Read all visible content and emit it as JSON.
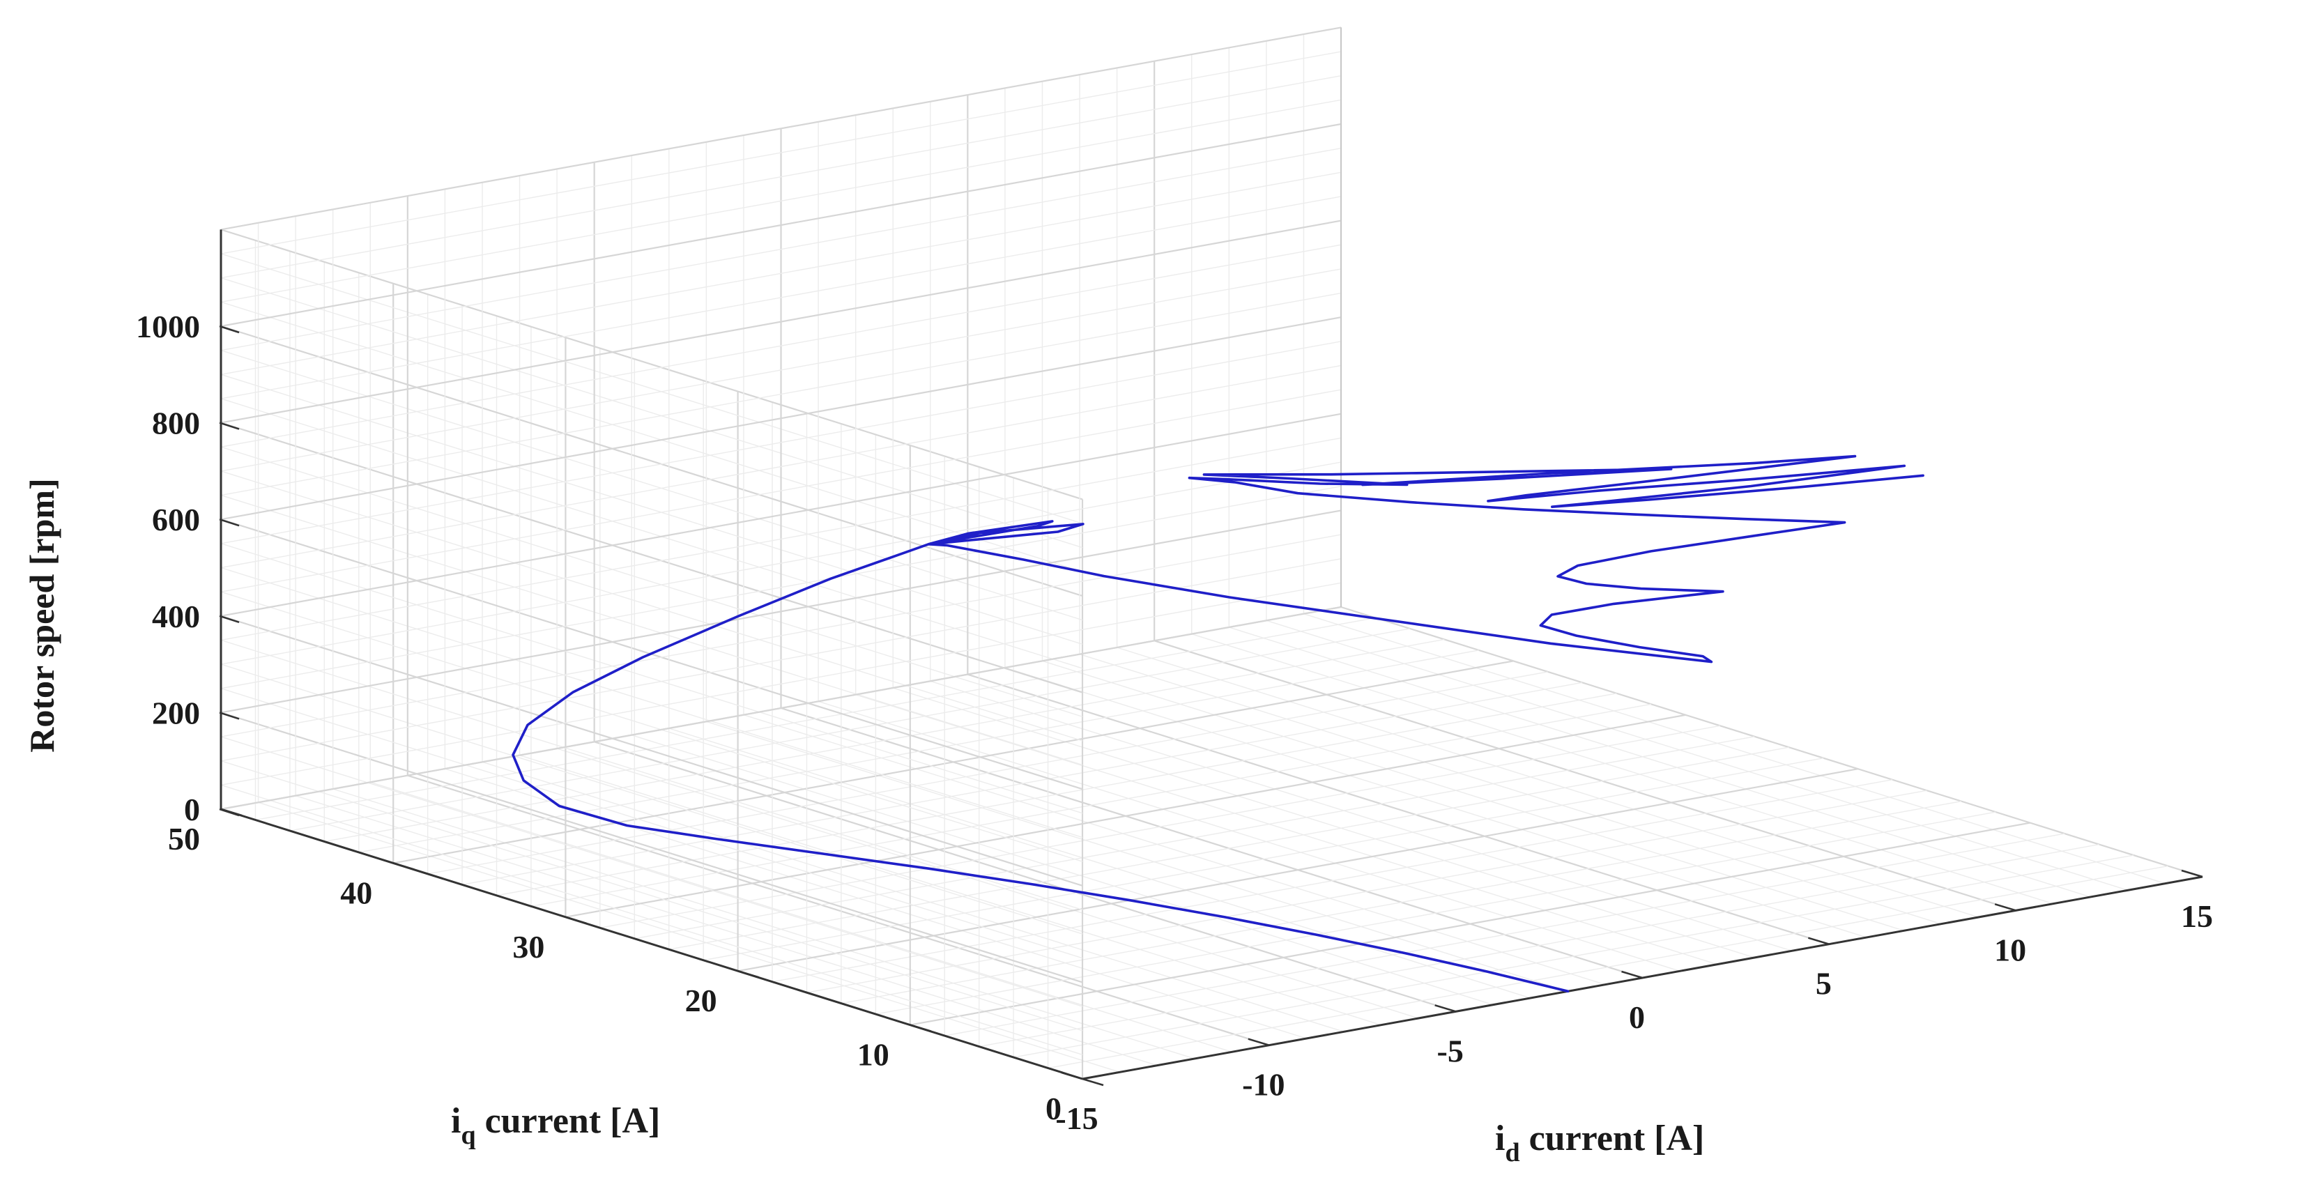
{
  "chart_data": {
    "type": "line3d",
    "title": "",
    "xlabel": {
      "main": "i",
      "sub": "d",
      "rest": " current [A]"
    },
    "ylabel": {
      "main": "i",
      "sub": "q",
      "rest": " current [A]"
    },
    "zlabel": "Rotor speed [rpm]",
    "xlim": [
      -15,
      15
    ],
    "ylim": [
      0,
      50
    ],
    "zlim": [
      0,
      1200
    ],
    "xticks": [
      "-15",
      "-10",
      "-5",
      "0",
      "5",
      "10",
      "15"
    ],
    "yticks": [
      "0",
      "10",
      "20",
      "30",
      "40",
      "50"
    ],
    "zticks": [
      "0",
      "200",
      "400",
      "600",
      "800",
      "1000"
    ],
    "grid": true,
    "series": [
      {
        "color": "#1f1fc8",
        "points": [
          [
            -2,
            0,
            0
          ],
          [
            -2.3,
            4,
            0
          ],
          [
            -2.7,
            8,
            0
          ],
          [
            -3.2,
            12,
            0
          ],
          [
            -3.8,
            16,
            0
          ],
          [
            -4.5,
            20,
            0
          ],
          [
            -5.3,
            24,
            0
          ],
          [
            -6.2,
            28,
            0
          ],
          [
            -7.2,
            32,
            0
          ],
          [
            -8.2,
            36,
            0
          ],
          [
            -9.2,
            39,
            8
          ],
          [
            -10,
            41.2,
            35
          ],
          [
            -10.4,
            42.4,
            80
          ],
          [
            -10.5,
            42.8,
            130
          ],
          [
            -10.2,
            42.6,
            190
          ],
          [
            -9.5,
            41.5,
            260
          ],
          [
            -8.5,
            39.6,
            340
          ],
          [
            -7,
            37.3,
            430
          ],
          [
            -5.5,
            35.2,
            510
          ],
          [
            -4.4,
            33.7,
            560
          ],
          [
            -3.8,
            33.2,
            580
          ],
          [
            -3.0,
            32.6,
            598
          ],
          [
            -1.5,
            31.0,
            620
          ],
          [
            -1.6,
            31.6,
            605
          ],
          [
            -3.8,
            33.2,
            580
          ],
          [
            -2.8,
            32.3,
            600
          ],
          [
            -1.0,
            30.3,
            615
          ],
          [
            -1.4,
            30.9,
            598
          ],
          [
            -3.8,
            33.2,
            580
          ],
          [
            -3.5,
            32.8,
            578
          ],
          [
            -2.5,
            30.5,
            560
          ],
          [
            -1.5,
            28,
            540
          ],
          [
            0,
            24,
            520
          ],
          [
            2,
            19,
            500
          ],
          [
            4,
            14,
            480
          ],
          [
            6,
            9,
            470
          ],
          [
            6,
            9.5,
            476
          ],
          [
            5,
            11,
            492
          ],
          [
            4,
            12.5,
            513
          ],
          [
            3.5,
            13.5,
            530
          ],
          [
            3.8,
            13.5,
            548
          ],
          [
            5,
            12.5,
            565
          ],
          [
            7,
            10.5,
            585
          ],
          [
            5.5,
            12,
            595
          ],
          [
            4.5,
            13,
            608
          ],
          [
            4.1,
            13.8,
            620
          ],
          [
            4.5,
            13.5,
            640
          ],
          [
            6,
            12.5,
            660
          ],
          [
            8,
            11,
            680
          ],
          [
            9.8,
            9.5,
            700
          ],
          [
            8,
            11.5,
            710
          ],
          [
            6,
            13.5,
            725
          ],
          [
            4,
            15.6,
            740
          ],
          [
            2,
            17.8,
            758
          ],
          [
            0,
            20,
            780
          ],
          [
            -1,
            21.5,
            800
          ],
          [
            -1.8,
            22.4,
            810
          ],
          [
            -1.2,
            21.6,
            808
          ],
          [
            0.5,
            19.8,
            795
          ],
          [
            2,
            18,
            792
          ],
          [
            0,
            20.5,
            805
          ],
          [
            -1.5,
            22.2,
            815
          ],
          [
            0.8,
            19.8,
            810
          ],
          [
            4,
            16.5,
            808
          ],
          [
            7,
            13.5,
            805
          ],
          [
            4,
            16.8,
            790
          ],
          [
            1.5,
            19.5,
            782
          ],
          [
            5,
            16.5,
            790
          ],
          [
            9,
            13,
            795
          ],
          [
            11,
            11.5,
            798
          ],
          [
            7,
            14.5,
            770
          ],
          [
            4.5,
            16.5,
            752
          ],
          [
            3.8,
            17.2,
            742
          ],
          [
            6,
            15.5,
            752
          ],
          [
            9,
            13,
            762
          ],
          [
            12,
            10.8,
            772
          ],
          [
            9,
            13.2,
            745
          ],
          [
            6,
            15.5,
            728
          ],
          [
            5.1,
            16.3,
            722
          ],
          [
            7,
            14.8,
            727
          ],
          [
            10,
            12.5,
            737
          ],
          [
            12.5,
            10.8,
            745
          ]
        ]
      }
    ]
  }
}
